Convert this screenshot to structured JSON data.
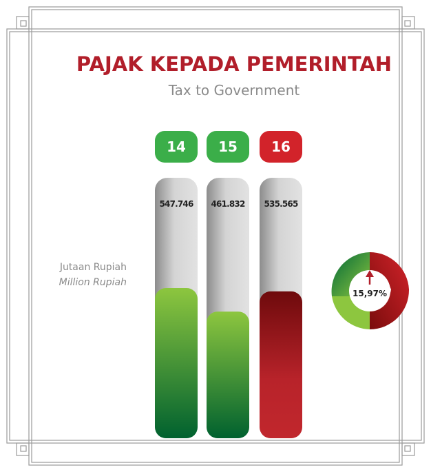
{
  "chart_data": {
    "type": "bar",
    "title": "PAJAK KEPADA PEMERINTAH",
    "subtitle": "Tax to Government",
    "unit_label": "Jutaan Rupiah",
    "unit_label_en": "Million Rupiah",
    "categories": [
      "14",
      "15",
      "16"
    ],
    "values": [
      547746,
      461832,
      535565
    ],
    "value_labels": [
      "547.746",
      "461.832",
      "535.565"
    ],
    "colors": [
      "#3bae49",
      "#3bae49",
      "#d2232a"
    ],
    "change": {
      "value": 15.97,
      "label": "15,97%"
    }
  }
}
